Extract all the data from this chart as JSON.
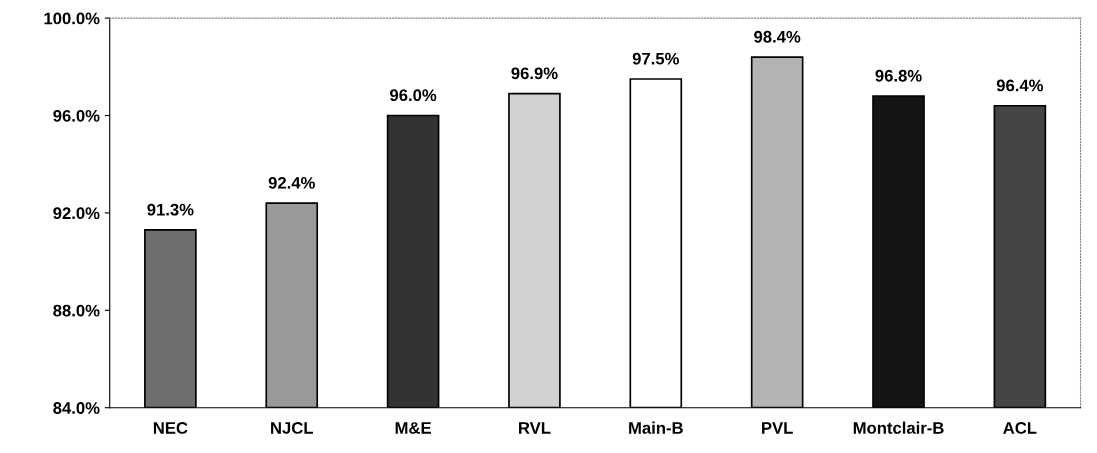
{
  "chart_data": {
    "type": "bar",
    "categories": [
      "NEC",
      "NJCL",
      "M&E",
      "RVL",
      "Main-B",
      "PVL",
      "Montclair-B",
      "ACL"
    ],
    "values": [
      91.3,
      92.4,
      96.0,
      96.9,
      97.5,
      98.4,
      96.8,
      96.4
    ],
    "value_labels": [
      "91.3%",
      "92.4%",
      "96.0%",
      "96.9%",
      "97.5%",
      "98.4%",
      "96.8%",
      "96.4%"
    ],
    "colors": [
      "#6e6e6e",
      "#999999",
      "#333333",
      "#d2d2d2",
      "#ffffff",
      "#b4b4b4",
      "#141414",
      "#454545"
    ],
    "ylim": [
      84,
      100
    ],
    "yticks": [
      {
        "value": 84,
        "label": "84.0%"
      },
      {
        "value": 88,
        "label": "88.0%"
      },
      {
        "value": 92,
        "label": "92.0%"
      },
      {
        "value": 96,
        "label": "96.0%"
      },
      {
        "value": 100,
        "label": "100.0%"
      }
    ],
    "grid": false,
    "legend": false
  }
}
